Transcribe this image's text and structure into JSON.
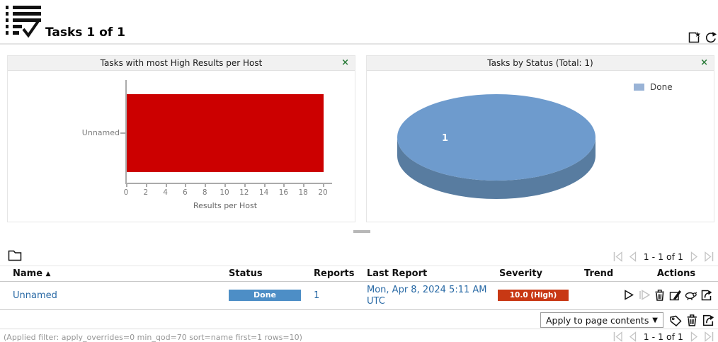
{
  "header": {
    "title": "Tasks 1 of 1"
  },
  "dashboard": {
    "panels": [
      {
        "title": "Tasks with most High Results per Host",
        "close": "×"
      },
      {
        "title": "Tasks by Status (Total: 1)",
        "close": "×"
      }
    ]
  },
  "chart_data": [
    {
      "type": "bar",
      "orientation": "horizontal",
      "title": "Tasks with most High Results per Host",
      "categories": [
        "Unnamed"
      ],
      "values": [
        20
      ],
      "xlabel": "Results per Host",
      "ylabel": "",
      "xlim": [
        0,
        20
      ],
      "xticks": [
        0,
        2,
        4,
        6,
        8,
        10,
        12,
        14,
        16,
        18,
        20
      ],
      "bar_color": "#cc0000",
      "grid": false
    },
    {
      "type": "pie",
      "style": "3d",
      "title": "Tasks by Status (Total: 1)",
      "labels": [
        "Done"
      ],
      "values": [
        1
      ],
      "total": 1,
      "slice_label": "1",
      "colors": [
        "#6e9bcd"
      ],
      "side_color": "#587ca0",
      "legend": {
        "position": "top-right",
        "entries": [
          {
            "label": "Done",
            "color": "#99b3d6"
          }
        ]
      }
    }
  ],
  "table": {
    "columns": [
      "Name",
      "Status",
      "Reports",
      "Last Report",
      "Severity",
      "Trend",
      "Actions"
    ],
    "sort": {
      "column": "Name",
      "direction": "asc",
      "indicator": "▲"
    },
    "rows": [
      {
        "name": "Unnamed",
        "status": {
          "label": "Done",
          "color": "#4d8ec6",
          "progress": 100
        },
        "reports": "1",
        "last_report": "Mon, Apr 8, 2024 5:11 AM UTC",
        "severity": {
          "label": "10.0 (High)",
          "color": "#c83814"
        },
        "trend": "",
        "actions": [
          "start",
          "resume",
          "move-to-trashcan",
          "edit",
          "clone",
          "export"
        ]
      }
    ],
    "pagination": {
      "label": "1 - 1 of 1"
    }
  },
  "bulk_actions": {
    "selected_option": "Apply to page contents",
    "dropdown_arrow": "▼",
    "icons": [
      "tags",
      "trashcan",
      "export"
    ]
  },
  "footer": {
    "applied_filter": "(Applied filter: apply_overrides=0 min_qod=70 sort=name first=1 rows=10)"
  }
}
